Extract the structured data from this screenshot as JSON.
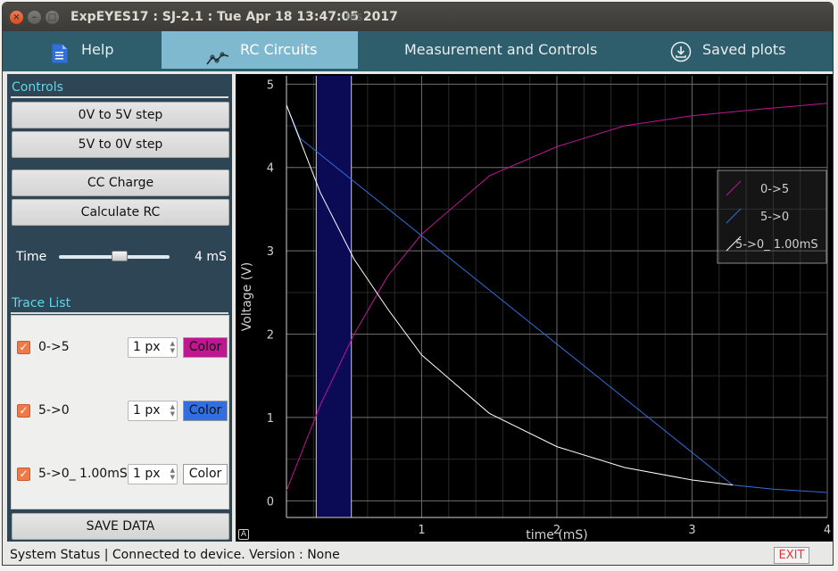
{
  "window": {
    "title": "ExpEYES17 : SJ-2.1 : Tue Apr 18 13:47:05 2017",
    "title_ghost": "les"
  },
  "tabs": [
    {
      "label": "Help",
      "icon": "document-icon"
    },
    {
      "label": "RC Circuits",
      "icon": "chart-line-icon"
    },
    {
      "label": "Measurement and Controls",
      "icon": ""
    },
    {
      "label": "Saved plots",
      "icon": "download-icon"
    }
  ],
  "controls": {
    "title": "Controls",
    "step_up_label": "0V to 5V step",
    "step_down_label": "5V to 0V step",
    "cc_charge_label": "CC Charge",
    "calc_rc_label": "Calculate RC",
    "time_label": "Time",
    "time_value": "4 mS",
    "time_slider_fraction": 0.5
  },
  "trace_list": {
    "title": "Trace List",
    "items": [
      {
        "name": "0->5",
        "checked": true,
        "width": "1 px",
        "color_label": "Color",
        "color": "#c0168f"
      },
      {
        "name": "5->0",
        "checked": true,
        "width": "1 px",
        "color_label": "Color",
        "color": "#2f6fdf"
      },
      {
        "name": "5->0_ 1.00mS",
        "checked": true,
        "width": "1 px",
        "color_label": "Color",
        "color": "#ffffff"
      }
    ],
    "save_label": "SAVE DATA"
  },
  "chart_data": {
    "type": "line",
    "xlabel": "time (mS)",
    "ylabel": "Voltage (V)",
    "xlim": [
      0,
      4
    ],
    "ylim": [
      -0.2,
      5.1
    ],
    "xticks": [
      1,
      2,
      3,
      4
    ],
    "yticks": [
      0,
      1,
      2,
      3,
      4,
      5
    ],
    "grid": true,
    "legend_position": "right",
    "highlight_region": {
      "x": [
        0.22,
        0.48
      ],
      "fill": "#0a0a55"
    },
    "series": [
      {
        "name": "0->5",
        "color": "#c0168f",
        "x": [
          0,
          0.25,
          0.5,
          0.75,
          1.0,
          1.5,
          2.0,
          2.5,
          3.0,
          3.5,
          4.0
        ],
        "y": [
          0.12,
          1.15,
          2.0,
          2.7,
          3.2,
          3.9,
          4.25,
          4.5,
          4.62,
          4.7,
          4.77
        ]
      },
      {
        "name": "5->0",
        "color": "#2f6fdf",
        "x": [
          0,
          0.1,
          3.3,
          3.6,
          4.0
        ],
        "y": [
          4.75,
          4.35,
          0.19,
          0.14,
          0.1
        ]
      },
      {
        "name": "5->0_ 1.00mS",
        "color": "#ffffff",
        "x": [
          0,
          0.25,
          0.5,
          0.75,
          1.0,
          1.5,
          2.0,
          2.5,
          3.0,
          3.3
        ],
        "y": [
          4.75,
          3.7,
          2.9,
          2.3,
          1.75,
          1.05,
          0.65,
          0.4,
          0.25,
          0.19
        ]
      }
    ]
  },
  "status": {
    "text": "System Status | Connected to device. Version : None",
    "exit_label": "EXIT"
  },
  "colors": {
    "tab_bar": "#2e5d6b",
    "tab_active": "#7fb9cf",
    "panel": "#2e4556",
    "section_title": "#5fd7e8"
  }
}
